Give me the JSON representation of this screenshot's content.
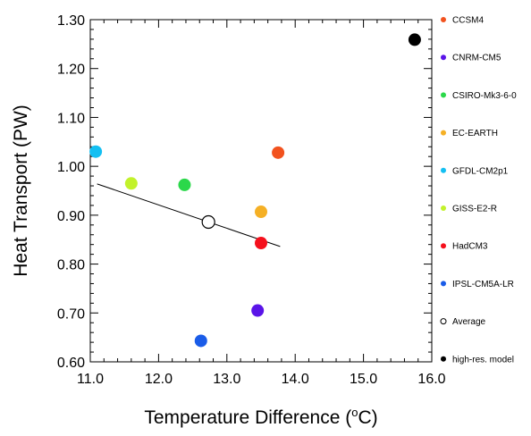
{
  "chart_data": {
    "type": "scatter",
    "xlabel_main": "Temperature Difference (",
    "xlabel_sup": "o",
    "xlabel_end": "C)",
    "ylabel": "Heat Transport (PW)",
    "xlim": [
      11.0,
      16.0
    ],
    "ylim": [
      0.6,
      1.3
    ],
    "x_ticks": [
      11.0,
      12.0,
      13.0,
      14.0,
      15.0,
      16.0
    ],
    "x_tick_labels": [
      "11.0",
      "12.0",
      "13.0",
      "14.0",
      "15.0",
      "16.0"
    ],
    "y_ticks": [
      0.6,
      0.7,
      0.8,
      0.9,
      1.0,
      1.1,
      1.2,
      1.3
    ],
    "y_tick_labels": [
      "0.60",
      "0.70",
      "0.80",
      "0.90",
      "1.00",
      "1.10",
      "1.20",
      "1.30"
    ],
    "grid": false,
    "legend_position": "right",
    "points": [
      {
        "name": "CCSM4",
        "x": 13.75,
        "y": 1.028,
        "color": "#f2521e",
        "filled": true
      },
      {
        "name": "CNRM-CM5",
        "x": 13.45,
        "y": 0.705,
        "color": "#5a14e8",
        "filled": true
      },
      {
        "name": "CSIRO-Mk3-6-0",
        "x": 12.38,
        "y": 0.962,
        "color": "#2bd84a",
        "filled": true
      },
      {
        "name": "EC-EARTH",
        "x": 13.5,
        "y": 0.907,
        "color": "#f5b025",
        "filled": true
      },
      {
        "name": "GFDL-CM2p1",
        "x": 11.08,
        "y": 1.03,
        "color": "#13bff2",
        "filled": true
      },
      {
        "name": "GISS-E2-R",
        "x": 11.6,
        "y": 0.965,
        "color": "#c2f22b",
        "filled": true
      },
      {
        "name": "HadCM3",
        "x": 13.5,
        "y": 0.843,
        "color": "#f5101c",
        "filled": true
      },
      {
        "name": "IPSL-CM5A-LR",
        "x": 12.62,
        "y": 0.643,
        "color": "#1a5ce8",
        "filled": true
      },
      {
        "name": "Average",
        "x": 12.73,
        "y": 0.886,
        "color": "#000000",
        "filled": false
      },
      {
        "name": "high-res. model",
        "x": 15.75,
        "y": 1.259,
        "color": "#000000",
        "filled": true
      }
    ],
    "regression_line": {
      "x": [
        11.1,
        13.78
      ],
      "y": [
        0.964,
        0.836
      ],
      "color": "#000000"
    }
  }
}
